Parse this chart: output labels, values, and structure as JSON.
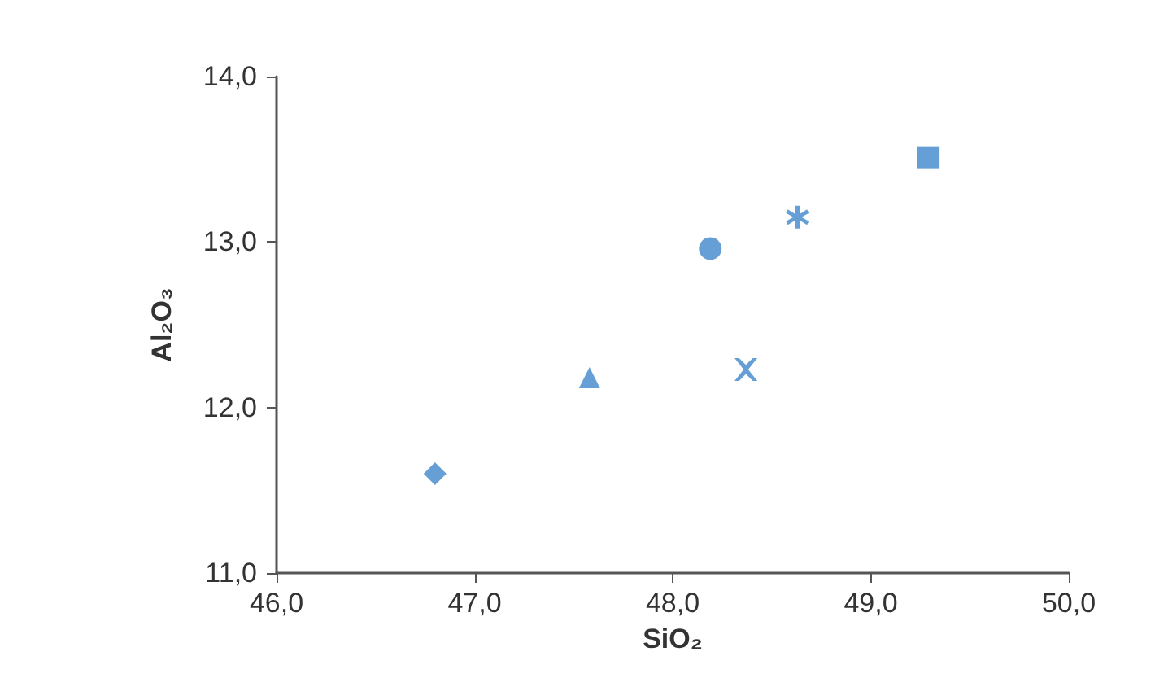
{
  "chart_data": {
    "type": "scatter",
    "xlabel": "SiO₂",
    "ylabel": "Al₂O₃",
    "grid": false,
    "xlim": [
      46,
      50
    ],
    "ylim": [
      11,
      14
    ],
    "xticks": [
      {
        "value": 46,
        "label": "46,0"
      },
      {
        "value": 47,
        "label": "47,0"
      },
      {
        "value": 48,
        "label": "48,0"
      },
      {
        "value": 49,
        "label": "49,0"
      },
      {
        "value": 50,
        "label": "50,0"
      }
    ],
    "yticks": [
      {
        "value": 11,
        "label": "11,0"
      },
      {
        "value": 12,
        "label": "12,0"
      },
      {
        "value": 13,
        "label": "13,0"
      },
      {
        "value": 14,
        "label": "14,0"
      }
    ],
    "series": [
      {
        "color": "#3f87cc",
        "marker": "diamond",
        "x": [
          46.8
        ],
        "values": [
          11.6
        ]
      },
      {
        "color": "#3f87cc",
        "marker": "triangle",
        "x": [
          47.58
        ],
        "values": [
          12.18
        ]
      },
      {
        "color": "#3f87cc",
        "marker": "circle",
        "x": [
          48.19
        ],
        "values": [
          12.96
        ]
      },
      {
        "color": "#3f87cc",
        "marker": "cross",
        "x": [
          48.37
        ],
        "values": [
          12.23
        ]
      },
      {
        "color": "#3f87cc",
        "marker": "star",
        "x": [
          48.63
        ],
        "values": [
          13.15
        ]
      },
      {
        "color": "#3f87cc",
        "marker": "square",
        "x": [
          49.29
        ],
        "values": [
          13.51
        ]
      }
    ]
  }
}
